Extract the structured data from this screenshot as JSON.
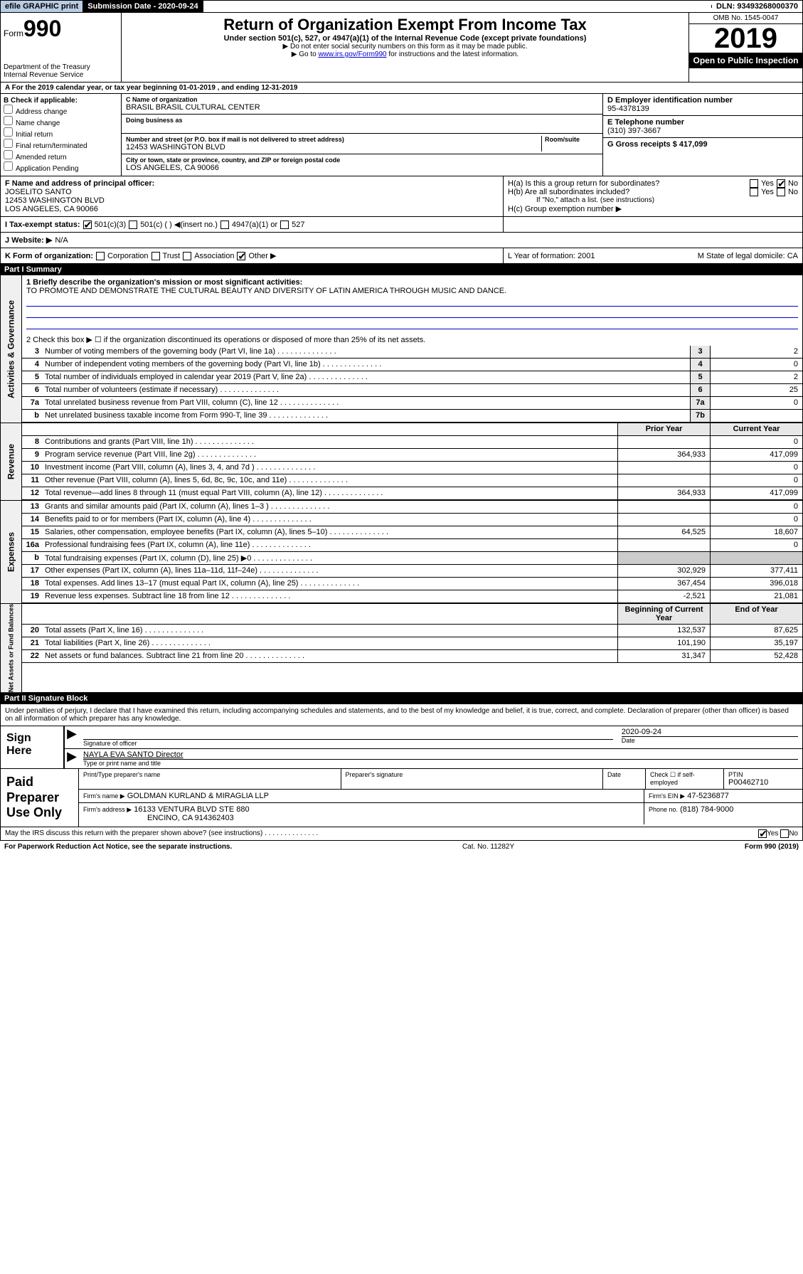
{
  "topbar": {
    "efile": "efile GRAPHIC print",
    "subdate_label": "Submission Date - 2020-09-24",
    "dln": "DLN: 93493268000370"
  },
  "header": {
    "form_prefix": "Form",
    "form_number": "990",
    "dept": "Department of the Treasury\nInternal Revenue Service",
    "title": "Return of Organization Exempt From Income Tax",
    "subtitle": "Under section 501(c), 527, or 4947(a)(1) of the Internal Revenue Code (except private foundations)",
    "note1": "▶ Do not enter social security numbers on this form as it may be made public.",
    "note2_pre": "▶ Go to ",
    "note2_link": "www.irs.gov/Form990",
    "note2_post": " for instructions and the latest information.",
    "omb": "OMB No. 1545-0047",
    "year": "2019",
    "openpub": "Open to Public Inspection"
  },
  "period": "A For the 2019 calendar year, or tax year beginning 01-01-2019    , and ending 12-31-2019",
  "check_if": {
    "label": "B Check if applicable:",
    "items": [
      "Address change",
      "Name change",
      "Initial return",
      "Final return/terminated",
      "Amended return",
      "Application Pending"
    ]
  },
  "org": {
    "name_label": "C Name of organization",
    "name": "BRASIL BRASIL CULTURAL CENTER",
    "dba_label": "Doing business as",
    "addr_label": "Number and street (or P.O. box if mail is not delivered to street address)",
    "room_label": "Room/suite",
    "addr": "12453 WASHINGTON BLVD",
    "city_label": "City or town, state or province, country, and ZIP or foreign postal code",
    "city": "LOS ANGELES, CA  90066"
  },
  "ein": {
    "label": "D Employer identification number",
    "value": "95-4378139"
  },
  "phone": {
    "label": "E Telephone number",
    "value": "(310) 397-3667"
  },
  "gross": {
    "label": "G Gross receipts $ 417,099"
  },
  "officer": {
    "label": "F  Name and address of principal officer:",
    "name": "JOSELITO SANTO",
    "addr1": "12453 WASHINGTON BLVD",
    "addr2": "LOS ANGELES, CA  90066"
  },
  "h": {
    "a": "H(a)  Is this a group return for subordinates?",
    "b": "H(b)  Are all subordinates included?",
    "bnote": "If \"No,\" attach a list. (see instructions)",
    "c": "H(c)  Group exemption number ▶"
  },
  "tax_status": "I    Tax-exempt status:",
  "status_opts": [
    "501(c)(3)",
    "501(c) (  ) ◀(insert no.)",
    "4947(a)(1) or",
    "527"
  ],
  "website_label": "J   Website: ▶",
  "website": "N/A",
  "k": "K Form of organization:",
  "k_opts": [
    "Corporation",
    "Trust",
    "Association",
    "Other ▶"
  ],
  "l": "L Year of formation: 2001",
  "m": "M State of legal domicile: CA",
  "part1": {
    "title": "Part I    Summary",
    "q1": "1   Briefly describe the organization's mission or most significant activities:",
    "a1": "TO PROMOTE AND DEMONSTRATE THE CULTURAL BEAUTY AND DIVERSITY OF LATIN AMERICA THROUGH MUSIC AND DANCE.",
    "q2": "2   Check this box ▶ ☐  if the organization discontinued its operations or disposed of more than 25% of its net assets.",
    "lines": [
      {
        "n": "3",
        "d": "Number of voting members of the governing body (Part VI, line 1a)",
        "box": "3",
        "v": "2"
      },
      {
        "n": "4",
        "d": "Number of independent voting members of the governing body (Part VI, line 1b)",
        "box": "4",
        "v": "0"
      },
      {
        "n": "5",
        "d": "Total number of individuals employed in calendar year 2019 (Part V, line 2a)",
        "box": "5",
        "v": "2"
      },
      {
        "n": "6",
        "d": "Total number of volunteers (estimate if necessary)",
        "box": "6",
        "v": "25"
      },
      {
        "n": "7a",
        "d": "Total unrelated business revenue from Part VIII, column (C), line 12",
        "box": "7a",
        "v": "0"
      },
      {
        "n": "b",
        "d": "Net unrelated business taxable income from Form 990-T, line 39",
        "box": "7b",
        "v": ""
      }
    ],
    "hdr_prior": "Prior Year",
    "hdr_curr": "Current Year",
    "rev": [
      {
        "n": "8",
        "d": "Contributions and grants (Part VIII, line 1h)",
        "p": "",
        "c": "0"
      },
      {
        "n": "9",
        "d": "Program service revenue (Part VIII, line 2g)",
        "p": "364,933",
        "c": "417,099"
      },
      {
        "n": "10",
        "d": "Investment income (Part VIII, column (A), lines 3, 4, and 7d )",
        "p": "",
        "c": "0"
      },
      {
        "n": "11",
        "d": "Other revenue (Part VIII, column (A), lines 5, 6d, 8c, 9c, 10c, and 11e)",
        "p": "",
        "c": "0"
      },
      {
        "n": "12",
        "d": "Total revenue—add lines 8 through 11 (must equal Part VIII, column (A), line 12)",
        "p": "364,933",
        "c": "417,099"
      }
    ],
    "exp": [
      {
        "n": "13",
        "d": "Grants and similar amounts paid (Part IX, column (A), lines 1–3 )",
        "p": "",
        "c": "0"
      },
      {
        "n": "14",
        "d": "Benefits paid to or for members (Part IX, column (A), line 4)",
        "p": "",
        "c": "0"
      },
      {
        "n": "15",
        "d": "Salaries, other compensation, employee benefits (Part IX, column (A), lines 5–10)",
        "p": "64,525",
        "c": "18,607"
      },
      {
        "n": "16a",
        "d": "Professional fundraising fees (Part IX, column (A), line 11e)",
        "p": "",
        "c": "0"
      },
      {
        "n": "b",
        "d": "Total fundraising expenses (Part IX, column (D), line 25) ▶0",
        "p": "",
        "c": "",
        "shade": true
      },
      {
        "n": "17",
        "d": "Other expenses (Part IX, column (A), lines 11a–11d, 11f–24e)",
        "p": "302,929",
        "c": "377,411"
      },
      {
        "n": "18",
        "d": "Total expenses. Add lines 13–17 (must equal Part IX, column (A), line 25)",
        "p": "367,454",
        "c": "396,018"
      },
      {
        "n": "19",
        "d": "Revenue less expenses. Subtract line 18 from line 12",
        "p": "-2,521",
        "c": "21,081"
      }
    ],
    "hdr_beg": "Beginning of Current Year",
    "hdr_end": "End of Year",
    "net": [
      {
        "n": "20",
        "d": "Total assets (Part X, line 16)",
        "p": "132,537",
        "c": "87,625"
      },
      {
        "n": "21",
        "d": "Total liabilities (Part X, line 26)",
        "p": "101,190",
        "c": "35,197"
      },
      {
        "n": "22",
        "d": "Net assets or fund balances. Subtract line 21 from line 20",
        "p": "31,347",
        "c": "52,428"
      }
    ]
  },
  "part2": "Part II    Signature Block",
  "perjury": "Under penalties of perjury, I declare that I have examined this return, including accompanying schedules and statements, and to the best of my knowledge and belief, it is true, correct, and complete. Declaration of preparer (other than officer) is based on all information of which preparer has any knowledge.",
  "sign": {
    "here": "Sign Here",
    "sig_lbl": "Signature of officer",
    "date": "2020-09-24",
    "date_lbl": "Date",
    "name": "NAYLA EVA SANTO  Director",
    "name_lbl": "Type or print name and title"
  },
  "prep": {
    "label": "Paid Preparer Use Only",
    "h1": "Print/Type preparer's name",
    "h2": "Preparer's signature",
    "h3": "Date",
    "h4_pre": "Check ☐ if self-employed",
    "h5": "PTIN",
    "ptin": "P00462710",
    "firm_lbl": "Firm's name    ▶",
    "firm": "GOLDMAN KURLAND & MIRAGLIA LLP",
    "ein_lbl": "Firm's EIN ▶",
    "ein": "47-5236877",
    "addr_lbl": "Firm's address ▶",
    "addr": "16133 VENTURA BLVD STE 880",
    "addr2": "ENCINO, CA  914362403",
    "phone_lbl": "Phone no.",
    "phone": "(818) 784-9000"
  },
  "discuss": "May the IRS discuss this return with the preparer shown above? (see instructions)",
  "footer": {
    "pra": "For Paperwork Reduction Act Notice, see the separate instructions.",
    "cat": "Cat. No. 11282Y",
    "form": "Form 990 (2019)"
  },
  "yes": "Yes",
  "no": "No"
}
